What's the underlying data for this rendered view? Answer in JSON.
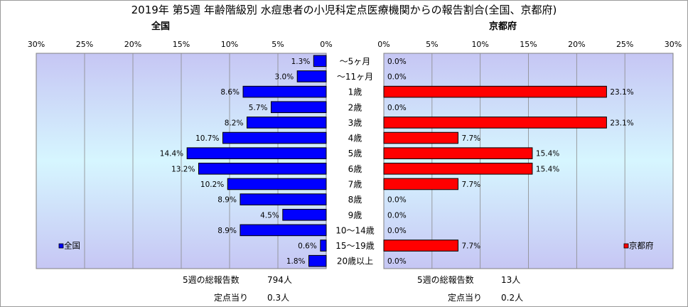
{
  "title": "2019年 第5週 年齢階級別 水痘患者の小児科定点医療機関からの報告割合(全国、京都府)",
  "chart_data": [
    {
      "type": "bar",
      "orientation": "horizontal",
      "direction": "right-to-left",
      "subtitle": "全国",
      "legend": "全国",
      "legend_position": "bottom-left",
      "color": "#0000ff",
      "xlim": [
        0,
        30
      ],
      "xticks": [
        "30%",
        "25%",
        "20%",
        "15%",
        "10%",
        "5%",
        "0%"
      ],
      "grid": true,
      "categories": [
        "～5ヶ月",
        "～11ヶ月",
        "1歳",
        "2歳",
        "3歳",
        "4歳",
        "5歳",
        "6歳",
        "7歳",
        "8歳",
        "9歳",
        "10～14歳",
        "15～19歳",
        "20歳以上"
      ],
      "values": [
        1.3,
        3.0,
        8.6,
        5.7,
        8.2,
        10.7,
        14.4,
        13.2,
        10.2,
        8.9,
        4.5,
        8.9,
        0.6,
        1.8
      ],
      "value_labels": [
        "1.3%",
        "3.0%",
        "8.6%",
        "5.7%",
        "8.2%",
        "10.7%",
        "14.4%",
        "13.2%",
        "10.2%",
        "8.9%",
        "4.5%",
        "8.9%",
        "0.6%",
        "1.8%"
      ]
    },
    {
      "type": "bar",
      "orientation": "horizontal",
      "direction": "left-to-right",
      "subtitle": "京都府",
      "legend": "京都府",
      "legend_position": "bottom-right",
      "color": "#ff0000",
      "xlim": [
        0,
        30
      ],
      "xticks": [
        "0%",
        "5%",
        "10%",
        "15%",
        "20%",
        "25%",
        "30%"
      ],
      "grid": true,
      "categories": [
        "～5ヶ月",
        "～11ヶ月",
        "1歳",
        "2歳",
        "3歳",
        "4歳",
        "5歳",
        "6歳",
        "7歳",
        "8歳",
        "9歳",
        "10～14歳",
        "15～19歳",
        "20歳以上"
      ],
      "values": [
        0.0,
        0.0,
        23.1,
        0.0,
        23.1,
        7.7,
        15.4,
        15.4,
        7.7,
        0.0,
        0.0,
        0.0,
        7.7,
        0.0
      ],
      "value_labels": [
        "0.0%",
        "0.0%",
        "23.1%",
        "0.0%",
        "23.1%",
        "7.7%",
        "15.4%",
        "15.4%",
        "7.7%",
        "0.0%",
        "0.0%",
        "0.0%",
        "7.7%",
        "0.0%"
      ]
    }
  ],
  "footer": {
    "national": {
      "total_label": "5週の総報告数",
      "total_value": "794人",
      "per_label": "定点当り",
      "per_value": "0.3人"
    },
    "kyoto": {
      "total_label": "5週の総報告数",
      "total_value": "13人",
      "per_label": "定点当り",
      "per_value": "0.2人"
    }
  }
}
